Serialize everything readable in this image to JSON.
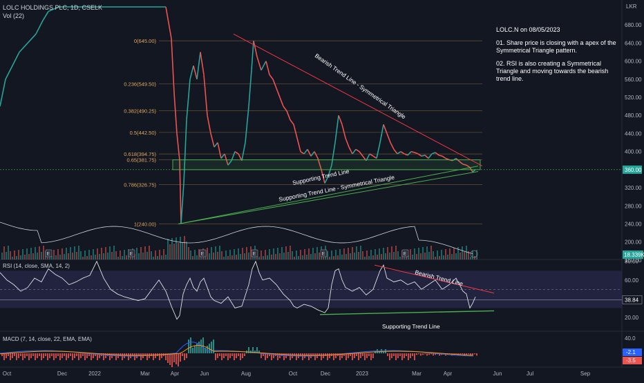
{
  "header": {
    "title": "LOLC HOLDINGS PLC, 1D, CSELK",
    "volume_label": "Vol (22)",
    "currency": "LKR"
  },
  "annotation": {
    "title": "LOLC.N on 08/05/2023",
    "point1": "01. Share price is closing with a apex of the Symmetrical Triangle pattern.",
    "point2": "02. RSI is also creating a Symmetrical Triangle and moving towards the bearish trend line."
  },
  "colors": {
    "background": "#131722",
    "up": "#26a69a",
    "down": "#ef5350",
    "bearish_line": "#f23645",
    "support_line": "#4caf50",
    "fib_line": "#8b6f3e",
    "rsi_band": "#2a2a4a",
    "macd_line": "#2962ff",
    "signal_line": "#ff9800"
  },
  "chart_data": [
    {
      "type": "line",
      "name": "price",
      "ylabel": "LKR",
      "ylim": [
        140,
        720
      ],
      "y_ticks": [
        160,
        200,
        240,
        280,
        320,
        360,
        400,
        440,
        480,
        520,
        560,
        600,
        640,
        680
      ],
      "y_tick_labels": [
        "160.00",
        "200.00",
        "240.00",
        "280.00",
        "320.00",
        "360.00",
        "400.00",
        "440.00",
        "480.00",
        "520.00",
        "560.00",
        "600.00",
        "640.00",
        "680.00"
      ],
      "last_price_label": "360.00",
      "volume_label_value": "18.339K",
      "x_ticks": [
        "Oct",
        "Dec",
        "2022",
        "Mar",
        "Apr",
        "Jun",
        "Aug",
        "Oct",
        "Dec",
        "2023",
        "Mar",
        "Apr",
        "Jun",
        "Jul",
        "Sep"
      ],
      "fib_levels": [
        {
          "label": "0(645.00)",
          "value": 645.0
        },
        {
          "label": "0.236(549.50)",
          "value": 549.5
        },
        {
          "label": "0.382(490.25)",
          "value": 490.25
        },
        {
          "label": "0.5(442.50)",
          "value": 442.5
        },
        {
          "label": "0.618(394.75)",
          "value": 394.75
        },
        {
          "label": "0.65(381.75)",
          "value": 381.75
        },
        {
          "label": "0.786(326.75)",
          "value": 326.75
        },
        {
          "label": "1(240.00)",
          "value": 240.0
        }
      ],
      "trend_labels": {
        "bearish": "Bearish Trend Line - Symmetrical Triangle",
        "support": "Supporting Trend Line",
        "support_triangle": "Supporting Trend Line - Symmetrical Triangle"
      },
      "close_path": [
        [
          0,
          500
        ],
        [
          8,
          560
        ],
        [
          18,
          590
        ],
        [
          28,
          620
        ],
        [
          40,
          640
        ],
        [
          52,
          660
        ],
        [
          62,
          690
        ],
        [
          70,
          710
        ],
        [
          85,
          720
        ],
        [
          110,
          720
        ],
        [
          150,
          720
        ],
        [
          200,
          720
        ],
        [
          240,
          720
        ],
        [
          248,
          650
        ],
        [
          252,
          530
        ],
        [
          256,
          440
        ],
        [
          260,
          380
        ],
        [
          262,
          240
        ],
        [
          266,
          330
        ],
        [
          270,
          470
        ],
        [
          275,
          560
        ],
        [
          280,
          590
        ],
        [
          285,
          560
        ],
        [
          290,
          620
        ],
        [
          295,
          570
        ],
        [
          300,
          480
        ],
        [
          305,
          440
        ],
        [
          310,
          410
        ],
        [
          315,
          420
        ],
        [
          320,
          385
        ],
        [
          325,
          395
        ],
        [
          330,
          370
        ],
        [
          335,
          380
        ],
        [
          340,
          400
        ],
        [
          345,
          395
        ],
        [
          350,
          380
        ],
        [
          355,
          420
        ],
        [
          360,
          500
        ],
        [
          364,
          580
        ],
        [
          367,
          645
        ],
        [
          372,
          610
        ],
        [
          378,
          580
        ],
        [
          385,
          600
        ],
        [
          390,
          570
        ],
        [
          395,
          560
        ],
        [
          400,
          540
        ],
        [
          405,
          520
        ],
        [
          410,
          500
        ],
        [
          415,
          490
        ],
        [
          420,
          470
        ],
        [
          425,
          460
        ],
        [
          430,
          430
        ],
        [
          435,
          400
        ],
        [
          440,
          395
        ],
        [
          445,
          405
        ],
        [
          450,
          390
        ],
        [
          455,
          400
        ],
        [
          460,
          385
        ],
        [
          465,
          360
        ],
        [
          470,
          330
        ],
        [
          475,
          345
        ],
        [
          480,
          370
        ],
        [
          485,
          420
        ],
        [
          490,
          480
        ],
        [
          495,
          460
        ],
        [
          500,
          430
        ],
        [
          505,
          410
        ],
        [
          510,
          395
        ],
        [
          515,
          405
        ],
        [
          520,
          400
        ],
        [
          525,
          390
        ],
        [
          530,
          380
        ],
        [
          535,
          395
        ],
        [
          540,
          390
        ],
        [
          545,
          385
        ],
        [
          550,
          420
        ],
        [
          555,
          460
        ],
        [
          560,
          440
        ],
        [
          565,
          420
        ],
        [
          570,
          405
        ],
        [
          575,
          395
        ],
        [
          580,
          400
        ],
        [
          585,
          395
        ],
        [
          590,
          392
        ],
        [
          595,
          400
        ],
        [
          600,
          398
        ],
        [
          605,
          395
        ],
        [
          610,
          390
        ],
        [
          615,
          392
        ],
        [
          620,
          385
        ],
        [
          625,
          395
        ],
        [
          630,
          398
        ],
        [
          635,
          392
        ],
        [
          640,
          390
        ],
        [
          645,
          385
        ],
        [
          650,
          382
        ],
        [
          655,
          380
        ],
        [
          660,
          385
        ],
        [
          665,
          378
        ],
        [
          670,
          372
        ],
        [
          675,
          370
        ],
        [
          680,
          365
        ],
        [
          684,
          355
        ],
        [
          688,
          360
        ]
      ]
    },
    {
      "type": "line",
      "name": "RSI",
      "label": "RSI (14, close, SMA, 14, 2)",
      "ylim": [
        14,
        82
      ],
      "y_ticks": [
        20,
        40,
        60,
        80
      ],
      "y_tick_labels": [
        "20.00",
        "40.00",
        "60.00",
        "80.00"
      ],
      "current_label": "38.84",
      "trend_labels": {
        "bearish": "Bearish Trend Line",
        "support": "Supporting Trend Line"
      },
      "rsi_path": [
        [
          0,
          68
        ],
        [
          10,
          60
        ],
        [
          20,
          55
        ],
        [
          30,
          48
        ],
        [
          40,
          52
        ],
        [
          50,
          62
        ],
        [
          60,
          58
        ],
        [
          70,
          72
        ],
        [
          80,
          66
        ],
        [
          90,
          62
        ],
        [
          100,
          55
        ],
        [
          110,
          58
        ],
        [
          120,
          62
        ],
        [
          130,
          65
        ],
        [
          140,
          80
        ],
        [
          150,
          62
        ],
        [
          160,
          50
        ],
        [
          170,
          45
        ],
        [
          180,
          42
        ],
        [
          190,
          40
        ],
        [
          200,
          38
        ],
        [
          210,
          40
        ],
        [
          220,
          50
        ],
        [
          230,
          60
        ],
        [
          240,
          48
        ],
        [
          248,
          32
        ],
        [
          252,
          25
        ],
        [
          256,
          18
        ],
        [
          260,
          22
        ],
        [
          265,
          45
        ],
        [
          270,
          55
        ],
        [
          275,
          62
        ],
        [
          280,
          52
        ],
        [
          285,
          48
        ],
        [
          290,
          58
        ],
        [
          295,
          62
        ],
        [
          300,
          52
        ],
        [
          305,
          42
        ],
        [
          310,
          38
        ],
        [
          320,
          35
        ],
        [
          330,
          42
        ],
        [
          340,
          30
        ],
        [
          350,
          32
        ],
        [
          360,
          55
        ],
        [
          365,
          72
        ],
        [
          370,
          80
        ],
        [
          375,
          68
        ],
        [
          380,
          60
        ],
        [
          390,
          62
        ],
        [
          400,
          55
        ],
        [
          410,
          45
        ],
        [
          420,
          38
        ],
        [
          425,
          32
        ],
        [
          430,
          30
        ],
        [
          440,
          34
        ],
        [
          450,
          32
        ],
        [
          460,
          28
        ],
        [
          470,
          25
        ],
        [
          475,
          30
        ],
        [
          480,
          55
        ],
        [
          485,
          70
        ],
        [
          490,
          72
        ],
        [
          495,
          60
        ],
        [
          500,
          52
        ],
        [
          510,
          48
        ],
        [
          520,
          52
        ],
        [
          530,
          44
        ],
        [
          540,
          50
        ],
        [
          550,
          70
        ],
        [
          555,
          76
        ],
        [
          560,
          62
        ],
        [
          570,
          58
        ],
        [
          580,
          60
        ],
        [
          590,
          55
        ],
        [
          600,
          58
        ],
        [
          610,
          50
        ],
        [
          620,
          55
        ],
        [
          630,
          60
        ],
        [
          640,
          50
        ],
        [
          650,
          55
        ],
        [
          660,
          62
        ],
        [
          670,
          48
        ],
        [
          675,
          45
        ],
        [
          680,
          30
        ],
        [
          684,
          35
        ],
        [
          688,
          42
        ]
      ]
    },
    {
      "type": "bar",
      "name": "MACD",
      "label": "MACD (7, 14, close, 22, EMA, EMA)",
      "y_ticks": [
        40
      ],
      "y_tick_labels": [
        "40.0"
      ],
      "current_labels": [
        "-2.1",
        "-3.5"
      ]
    }
  ]
}
